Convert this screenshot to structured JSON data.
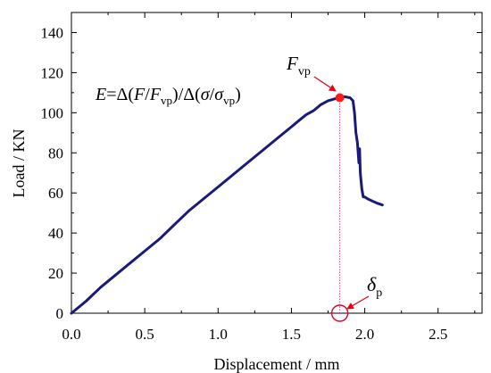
{
  "chart_data": {
    "type": "line",
    "xlabel": "Displacement / mm",
    "ylabel": "Load / KN",
    "xlim": [
      0,
      2.8
    ],
    "ylim": [
      0,
      150
    ],
    "xticks": [
      "0.0",
      "0.5",
      "1.0",
      "1.5",
      "2.0",
      "2.5"
    ],
    "yticks": [
      "0",
      "20",
      "40",
      "60",
      "80",
      "100",
      "120",
      "140"
    ],
    "grid": false,
    "series": [
      {
        "color": "#1a1a7a",
        "x": [
          0.0,
          0.1,
          0.2,
          0.3,
          0.4,
          0.5,
          0.6,
          0.7,
          0.8,
          0.9,
          1.0,
          1.1,
          1.2,
          1.3,
          1.4,
          1.5,
          1.55,
          1.6,
          1.65,
          1.7,
          1.75,
          1.8,
          1.83,
          1.86,
          1.9,
          1.92,
          1.93,
          1.94,
          1.95,
          1.955,
          1.96,
          1.965,
          1.97,
          1.98,
          1.99,
          2.0,
          2.02,
          2.05,
          2.08,
          2.12
        ],
        "y": [
          0,
          6,
          13,
          19,
          25,
          31,
          37,
          44,
          51,
          57,
          63,
          69,
          75,
          81,
          87,
          93,
          96,
          99,
          101,
          104,
          106,
          107,
          107.5,
          108,
          107.5,
          106,
          100,
          90,
          85,
          80,
          75,
          82,
          70,
          62,
          58,
          58,
          57,
          56,
          55,
          54
        ]
      }
    ],
    "annotations": {
      "equation": {
        "lhs": "E",
        "eq": "=",
        "p1": "Δ(",
        "f1": "F",
        "slash1": "/",
        "f2": "F",
        "sub1": "vp",
        "p2": ")/Δ(",
        "s1": "σ",
        "slash2": "/",
        "s2": "σ",
        "sub2": "vp",
        "p3": ")"
      },
      "peak_label": {
        "symbol": "F",
        "sub": "vp"
      },
      "peak_point": {
        "x": 1.83,
        "y": 107.5,
        "color": "#ff1a1a"
      },
      "disp_label": {
        "symbol": "δ",
        "sub": "p"
      },
      "disp_marker": {
        "x": 1.83,
        "y": 0,
        "color": "#e8001a"
      }
    }
  }
}
